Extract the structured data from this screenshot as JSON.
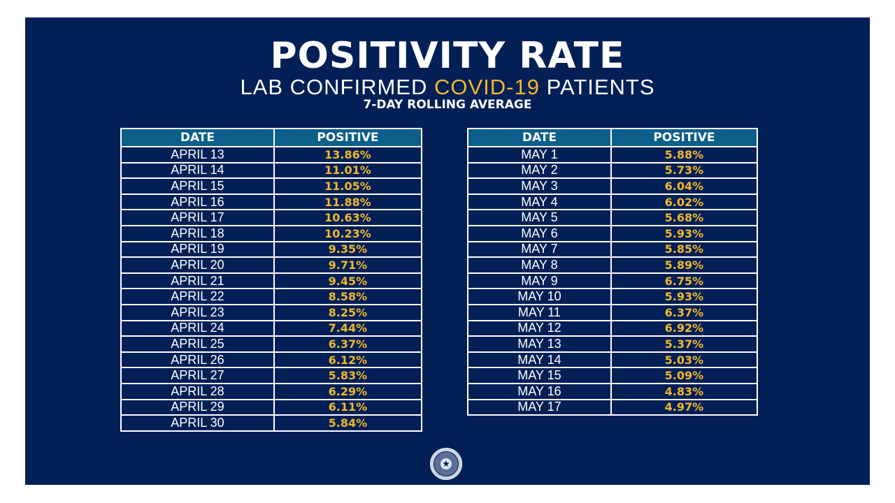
{
  "header": {
    "title": "POSITIVITY RATE",
    "subtitle_pre": "LAB CONFIRMED ",
    "subtitle_highlight": "COVID-19",
    "subtitle_post": " PATIENTS",
    "caption": "7-DAY ROLLING AVERAGE"
  },
  "colors": {
    "background": "#021f56",
    "header_row": "#0b5f8a",
    "accent": "#f2b82a",
    "text": "#ffffff"
  },
  "seal": {
    "icon": "texas-governor-seal-icon"
  },
  "chart_data": {
    "type": "table",
    "title": "POSITIVITY RATE — LAB CONFIRMED COVID-19 PATIENTS — 7-DAY ROLLING AVERAGE",
    "columns": [
      "DATE",
      "POSITIVE"
    ],
    "tables": [
      {
        "name": "april",
        "rows": [
          {
            "date": "APRIL 13",
            "positive": "13.86%"
          },
          {
            "date": "APRIL 14",
            "positive": "11.01%"
          },
          {
            "date": "APRIL 15",
            "positive": "11.05%"
          },
          {
            "date": "APRIL 16",
            "positive": "11.88%"
          },
          {
            "date": "APRIL 17",
            "positive": "10.63%"
          },
          {
            "date": "APRIL 18",
            "positive": "10.23%"
          },
          {
            "date": "APRIL 19",
            "positive": "9.35%"
          },
          {
            "date": "APRIL 20",
            "positive": "9.71%"
          },
          {
            "date": "APRIL 21",
            "positive": "9.45%"
          },
          {
            "date": "APRIL 22",
            "positive": "8.58%"
          },
          {
            "date": "APRIL 23",
            "positive": "8.25%"
          },
          {
            "date": "APRIL 24",
            "positive": "7.44%"
          },
          {
            "date": "APRIL 25",
            "positive": "6.37%"
          },
          {
            "date": "APRIL 26",
            "positive": "6.12%"
          },
          {
            "date": "APRIL 27",
            "positive": "5.83%"
          },
          {
            "date": "APRIL 28",
            "positive": "6.29%"
          },
          {
            "date": "APRIL 29",
            "positive": "6.11%"
          },
          {
            "date": "APRIL 30",
            "positive": "5.84%"
          }
        ]
      },
      {
        "name": "may",
        "rows": [
          {
            "date": "MAY 1",
            "positive": "5.88%"
          },
          {
            "date": "MAY 2",
            "positive": "5.73%"
          },
          {
            "date": "MAY 3",
            "positive": "6.04%"
          },
          {
            "date": "MAY 4",
            "positive": "6.02%"
          },
          {
            "date": "MAY 5",
            "positive": "5.68%"
          },
          {
            "date": "MAY 6",
            "positive": "5.93%"
          },
          {
            "date": "MAY 7",
            "positive": "5.85%"
          },
          {
            "date": "MAY 8",
            "positive": "5.89%"
          },
          {
            "date": "MAY 9",
            "positive": "6.75%"
          },
          {
            "date": "MAY 10",
            "positive": "5.93%"
          },
          {
            "date": "MAY 11",
            "positive": "6.37%"
          },
          {
            "date": "MAY 12",
            "positive": "6.92%"
          },
          {
            "date": "MAY 13",
            "positive": "5.37%"
          },
          {
            "date": "MAY 14",
            "positive": "5.03%"
          },
          {
            "date": "MAY 15",
            "positive": "5.09%"
          },
          {
            "date": "MAY 16",
            "positive": "4.83%"
          },
          {
            "date": "MAY 17",
            "positive": "4.97%"
          }
        ]
      }
    ]
  }
}
